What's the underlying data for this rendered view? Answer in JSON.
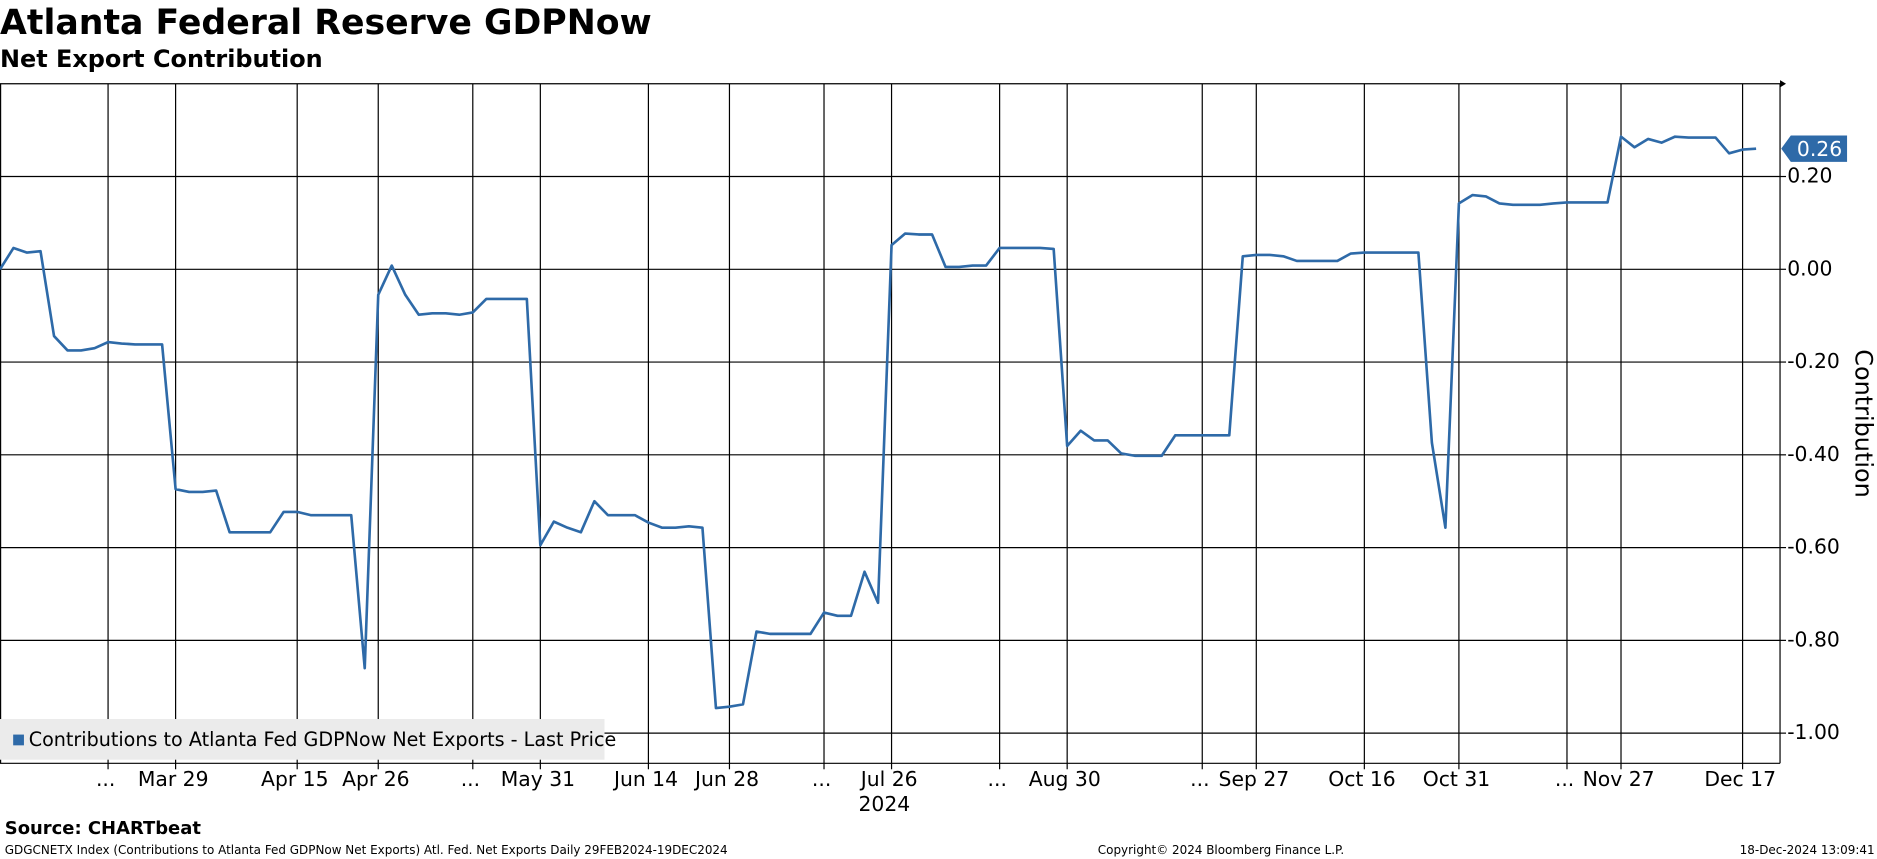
{
  "chart_data": {
    "type": "line",
    "title": "Atlanta Federal Reserve GDPNow",
    "subtitle": "Net Export Contribution",
    "y_label": "Contribution",
    "year": "2024",
    "source": "Source: CHARTbeat",
    "footer_left": "GDGCNETX Index (Contributions to Atlanta Fed GDPNow Net Exports) Atl. Fed. Net Exports  Daily 29FEB2024-19DEC2024",
    "footer_center": "Copyright© 2024 Bloomberg Finance L.P.",
    "footer_right": "18-Dec-2024 13:09:41",
    "categories": [
      null,
      null,
      null,
      null,
      null,
      null,
      null,
      null,
      "...",
      null,
      null,
      null,
      null,
      "Mar 29",
      null,
      null,
      null,
      null,
      null,
      null,
      null,
      null,
      "Apr 15",
      null,
      null,
      null,
      null,
      null,
      "Apr 26",
      null,
      null,
      null,
      null,
      null,
      null,
      "...",
      null,
      null,
      null,
      null,
      "May 31",
      null,
      null,
      null,
      null,
      null,
      null,
      null,
      "Jun 14",
      null,
      null,
      null,
      null,
      null,
      "Jun 28",
      null,
      null,
      null,
      null,
      null,
      null,
      "...",
      null,
      null,
      null,
      null,
      "Jul 26",
      null,
      null,
      null,
      null,
      null,
      null,
      null,
      "...",
      null,
      null,
      null,
      null,
      "Aug 30",
      null,
      null,
      null,
      null,
      null,
      null,
      null,
      null,
      null,
      "...",
      null,
      null,
      null,
      "Sep 27",
      null,
      null,
      null,
      null,
      null,
      null,
      null,
      "Oct 16",
      null,
      null,
      null,
      null,
      null,
      null,
      "Oct 31",
      null,
      null,
      null,
      null,
      null,
      null,
      null,
      "...",
      null,
      null,
      null,
      "Nov 27",
      null,
      null,
      null,
      null,
      null,
      null,
      null,
      null,
      "Dec 17",
      null
    ],
    "series": [
      {
        "name": "Contributions to Atlanta Fed GDPNow Net Exports - Last Price",
        "color": "#2e6aa8",
        "values": [
          0.0,
          0.046,
          0.036,
          0.039,
          -0.144,
          -0.175,
          -0.175,
          -0.17,
          -0.157,
          -0.16,
          -0.162,
          -0.162,
          -0.162,
          -0.474,
          -0.48,
          -0.48,
          -0.477,
          -0.567,
          -0.567,
          -0.567,
          -0.567,
          -0.523,
          -0.523,
          -0.53,
          -0.53,
          -0.53,
          -0.53,
          -0.86,
          -0.055,
          0.008,
          -0.055,
          -0.098,
          -0.095,
          -0.095,
          -0.098,
          -0.093,
          -0.064,
          -0.064,
          -0.064,
          -0.064,
          -0.595,
          -0.544,
          -0.557,
          -0.567,
          -0.5,
          -0.53,
          -0.53,
          -0.53,
          -0.546,
          -0.557,
          -0.557,
          -0.554,
          -0.557,
          -0.946,
          -0.943,
          -0.938,
          -0.781,
          -0.786,
          -0.786,
          -0.786,
          -0.786,
          -0.74,
          -0.747,
          -0.747,
          -0.652,
          -0.719,
          0.052,
          0.077,
          0.075,
          0.075,
          0.005,
          0.005,
          0.008,
          0.008,
          0.046,
          0.046,
          0.046,
          0.046,
          0.044,
          -0.381,
          -0.348,
          -0.369,
          -0.369,
          -0.397,
          -0.402,
          -0.402,
          -0.402,
          -0.358,
          -0.358,
          -0.358,
          -0.358,
          -0.358,
          0.028,
          0.031,
          0.031,
          0.028,
          0.018,
          0.018,
          0.018,
          0.018,
          0.034,
          0.036,
          0.036,
          0.036,
          0.036,
          0.036,
          -0.374,
          -0.557,
          0.142,
          0.16,
          0.157,
          0.142,
          0.139,
          0.139,
          0.139,
          0.142,
          0.144,
          0.144,
          0.144,
          0.144,
          0.286,
          0.263,
          0.281,
          0.273,
          0.286,
          0.284,
          0.284,
          0.284,
          0.25,
          0.258,
          0.26
        ],
        "value_labels": [
          null,
          null,
          null,
          null,
          null,
          null,
          null,
          null,
          null,
          null,
          null,
          null,
          null,
          null,
          null,
          null,
          null,
          null,
          null,
          null,
          null,
          null,
          null,
          null,
          null,
          null,
          null,
          null,
          null,
          null,
          null,
          null,
          null,
          null,
          null,
          null,
          null,
          null,
          null,
          null,
          null,
          null,
          null,
          null,
          null,
          null,
          null,
          null,
          null,
          null,
          null,
          null,
          null,
          null,
          null,
          null,
          null,
          null,
          null,
          null,
          null,
          null,
          null,
          null,
          null,
          null,
          null,
          null,
          null,
          null,
          null,
          null,
          null,
          null,
          null,
          null,
          null,
          null,
          null,
          null,
          null,
          null,
          null,
          null,
          null,
          null,
          null,
          null,
          null,
          null,
          null,
          null,
          null,
          null,
          null,
          null,
          null,
          null,
          null,
          null,
          null,
          null,
          null,
          null,
          null,
          null,
          null,
          null,
          null,
          null,
          null,
          null,
          null,
          null,
          null,
          null,
          null,
          null,
          null,
          null,
          null,
          null,
          null,
          null,
          null,
          null,
          null,
          null,
          null,
          null,
          "0.26"
        ]
      }
    ],
    "ylim": [
      -1.065,
      0.4
    ],
    "yticks": [
      {
        "value": 0.2,
        "label": "0.20"
      },
      {
        "value": 0,
        "label": "0.00"
      },
      {
        "value": -0.2,
        "label": "-0.20"
      },
      {
        "value": -0.4,
        "label": "-0.40"
      },
      {
        "value": -0.6,
        "label": "-0.60"
      },
      {
        "value": -0.8,
        "label": "-0.80"
      },
      {
        "value": -1,
        "label": "-1.00"
      }
    ],
    "grid": true,
    "legend": "bottom-left"
  }
}
